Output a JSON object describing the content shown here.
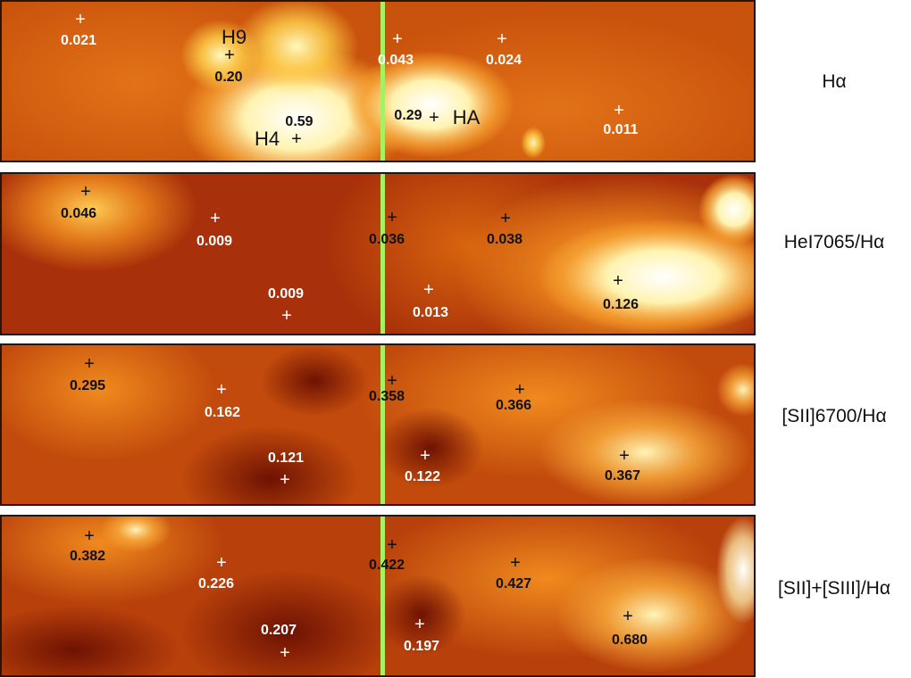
{
  "panels": [
    {
      "id": "halpha",
      "label": "Hα",
      "regions": [
        "H9",
        "H4",
        "HA"
      ],
      "values": [
        "0.021",
        "0.20",
        "0.043",
        "0.024",
        "0.59",
        "0.29",
        "0.011"
      ]
    },
    {
      "id": "hei7065",
      "label": "HeI7065/Hα",
      "values": [
        "0.046",
        "0.009",
        "0.036",
        "0.038",
        "0.009",
        "0.013",
        "0.126"
      ]
    },
    {
      "id": "sii6700",
      "label": "[SII]6700/Hα",
      "values": [
        "0.295",
        "0.162",
        "0.358",
        "0.366",
        "0.121",
        "0.122",
        "0.367"
      ]
    },
    {
      "id": "sii_siii",
      "label": "[SII]+[SIII]/Hα",
      "values": [
        "0.382",
        "0.226",
        "0.422",
        "0.427",
        "0.207",
        "0.197",
        "0.680"
      ]
    }
  ],
  "marker_symbol": "+",
  "colors": {
    "line": "#a8f060",
    "dark": "#8b1c05",
    "mid": "#d4600a",
    "bright": "#ffd24a",
    "white": "#ffffff"
  }
}
